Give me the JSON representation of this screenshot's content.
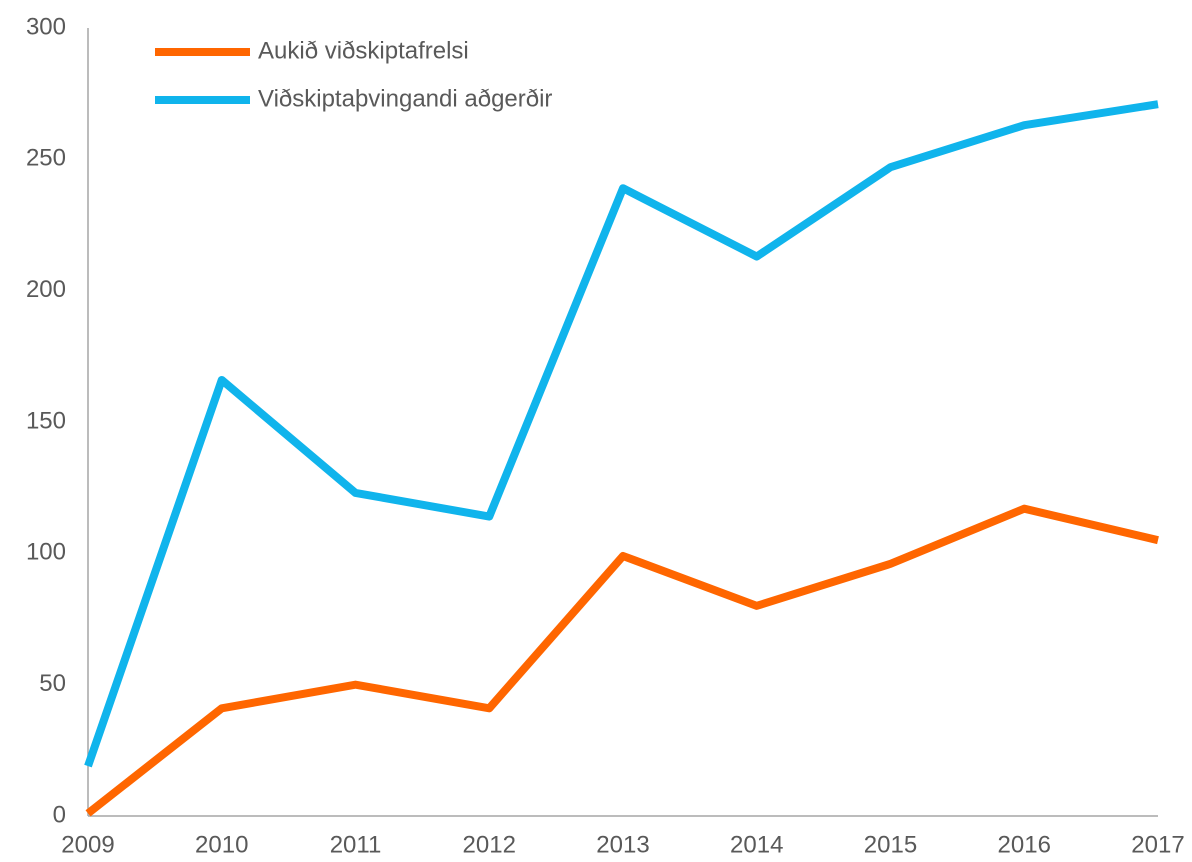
{
  "chart_data": {
    "type": "line",
    "x": [
      2009,
      2010,
      2011,
      2012,
      2013,
      2014,
      2015,
      2016,
      2017
    ],
    "xlim": [
      2009,
      2017
    ],
    "xticks": [
      2009,
      2010,
      2011,
      2012,
      2013,
      2014,
      2015,
      2016,
      2017
    ],
    "ylim": [
      0,
      300
    ],
    "yticks": [
      0,
      50,
      100,
      150,
      200,
      250,
      300
    ],
    "grid": false,
    "legend": "upper left",
    "series": [
      {
        "name": "Aukið viðskiptafrelsi",
        "color": "#ff6600",
        "values": [
          1,
          41,
          50,
          41,
          99,
          80,
          96,
          117,
          105
        ]
      },
      {
        "name": "Viðskiptaþvingandi aðgerðir",
        "color": "#10b4ec",
        "values": [
          19,
          166,
          123,
          114,
          239,
          213,
          247,
          263,
          271
        ]
      }
    ]
  }
}
